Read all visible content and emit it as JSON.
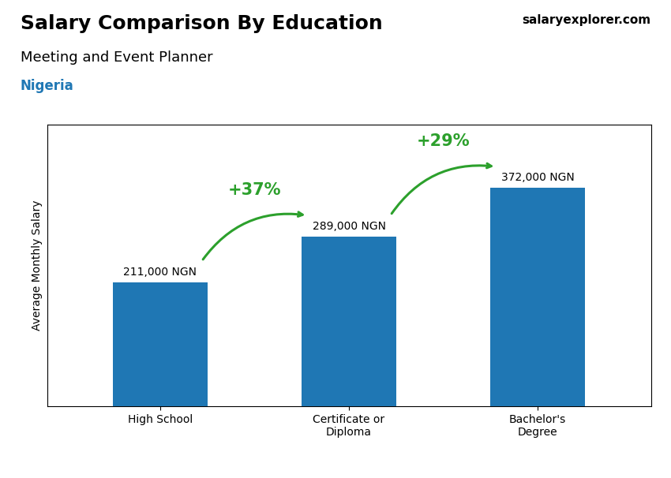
{
  "chart_data": {
    "type": "bar",
    "title": "Salary Comparison By Education",
    "subtitle": "Meeting and Event Planner",
    "annotations": [
      "Nigeria",
      "salaryexplorer.com"
    ],
    "ylabel": "Average Monthly Salary",
    "categories": [
      "High School",
      "Certificate or\nDiploma",
      "Bachelor's\nDegree"
    ],
    "values": [
      211000,
      289000,
      372000
    ],
    "value_labels": [
      "211,000 NGN",
      "289,000 NGN",
      "372,000 NGN"
    ],
    "data_labels": true,
    "changes": [
      {
        "value": 37,
        "label": "+37%"
      },
      {
        "value": 29,
        "label": "+29%"
      }
    ],
    "ylim": [
      0,
      480000
    ],
    "tick_labels": "x",
    "grid": false
  }
}
